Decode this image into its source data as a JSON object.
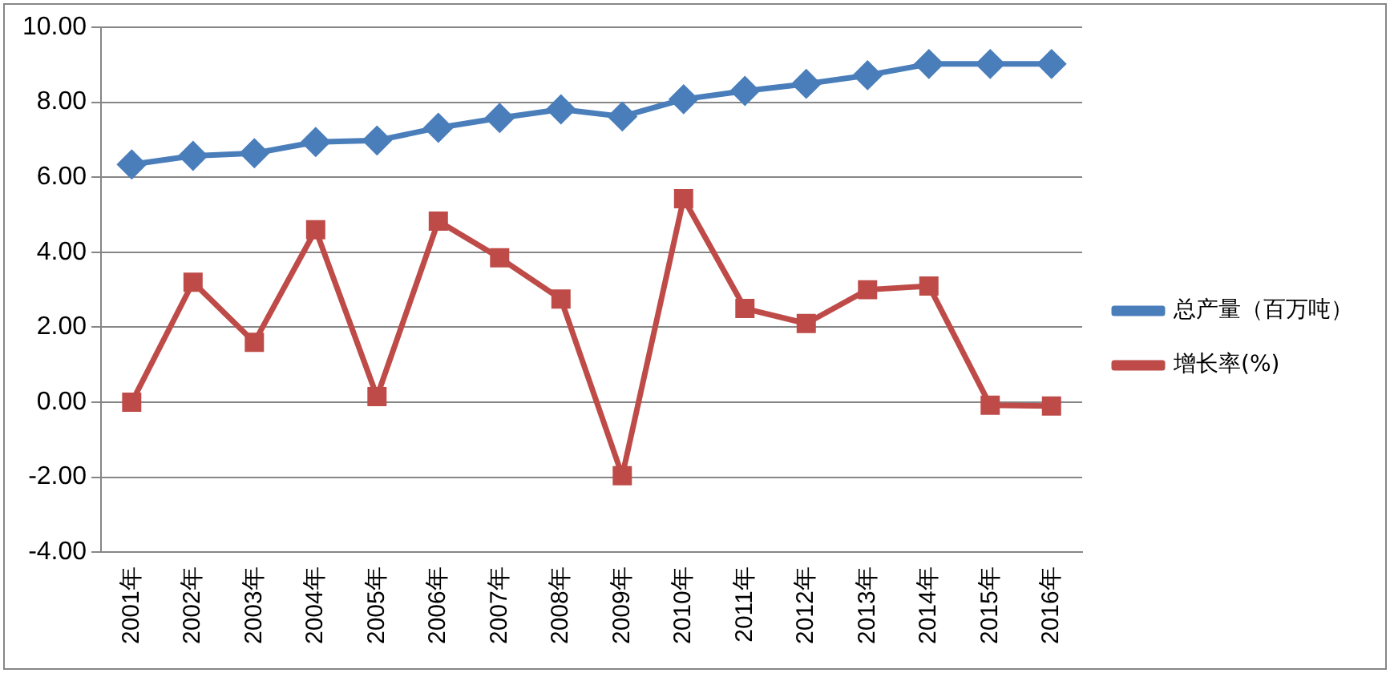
{
  "chart_data": {
    "type": "line",
    "categories": [
      "2001年",
      "2002年",
      "2003年",
      "2004年",
      "2005年",
      "2006年",
      "2007年",
      "2008年",
      "2009年",
      "2010年",
      "2011年",
      "2012年",
      "2013年",
      "2014年",
      "2015年",
      "2016年"
    ],
    "series": [
      {
        "name": "总产量（百万吨）",
        "color": "#4a7ebb",
        "marker": "diamond",
        "values": [
          6.34,
          6.57,
          6.64,
          6.94,
          6.98,
          7.32,
          7.58,
          7.81,
          7.62,
          8.08,
          8.3,
          8.49,
          8.72,
          9.02,
          9.02,
          9.02
        ]
      },
      {
        "name": "增长率(%)",
        "color": "#be4b48",
        "marker": "square",
        "values": [
          0,
          3.2,
          1.6,
          4.6,
          0.15,
          4.83,
          3.85,
          2.75,
          -1.96,
          5.43,
          2.5,
          2.1,
          3.0,
          3.1,
          -0.08,
          -0.1
        ]
      }
    ],
    "ylim": [
      -4,
      10
    ],
    "yticks": [
      {
        "value": -4,
        "label": "-4.00"
      },
      {
        "value": -2,
        "label": "-2.00"
      },
      {
        "value": 0,
        "label": "0.00"
      },
      {
        "value": 2,
        "label": "2.00"
      },
      {
        "value": 4,
        "label": "4.00"
      },
      {
        "value": 6,
        "label": "6.00"
      },
      {
        "value": 8,
        "label": "8.00"
      },
      {
        "value": 10,
        "label": "10.00"
      }
    ],
    "grid": "y",
    "legend": "right"
  }
}
